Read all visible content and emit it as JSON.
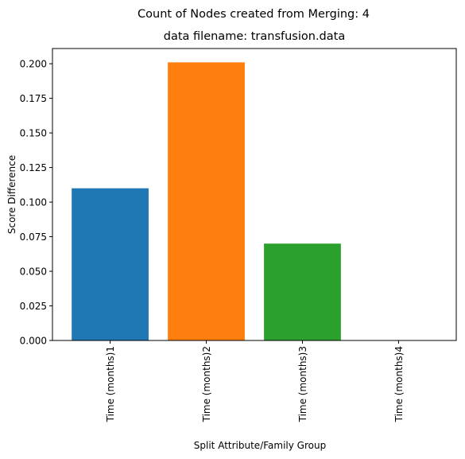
{
  "chart_data": {
    "type": "bar",
    "suptitle": "Count of Nodes created from Merging: 4",
    "title": "data filename: transfusion.data",
    "xlabel": "Split Attribute/Family Group",
    "ylabel": "Score Difference",
    "categories": [
      "Time (months)1",
      "Time (months)2",
      "Time (months)3",
      "Time (months)4"
    ],
    "values": [
      0.11,
      0.201,
      0.07,
      0.0
    ],
    "colors": [
      "#1f77b4",
      "#ff7f0e",
      "#2ca02c",
      "#d62728"
    ],
    "ylim": [
      0,
      0.211
    ],
    "yticks": [
      0.0,
      0.025,
      0.05,
      0.075,
      0.1,
      0.125,
      0.15,
      0.175,
      0.2
    ],
    "ytick_labels": [
      "0.000",
      "0.025",
      "0.050",
      "0.075",
      "0.100",
      "0.125",
      "0.150",
      "0.175",
      "0.200"
    ],
    "grid": false,
    "legend": "none"
  }
}
